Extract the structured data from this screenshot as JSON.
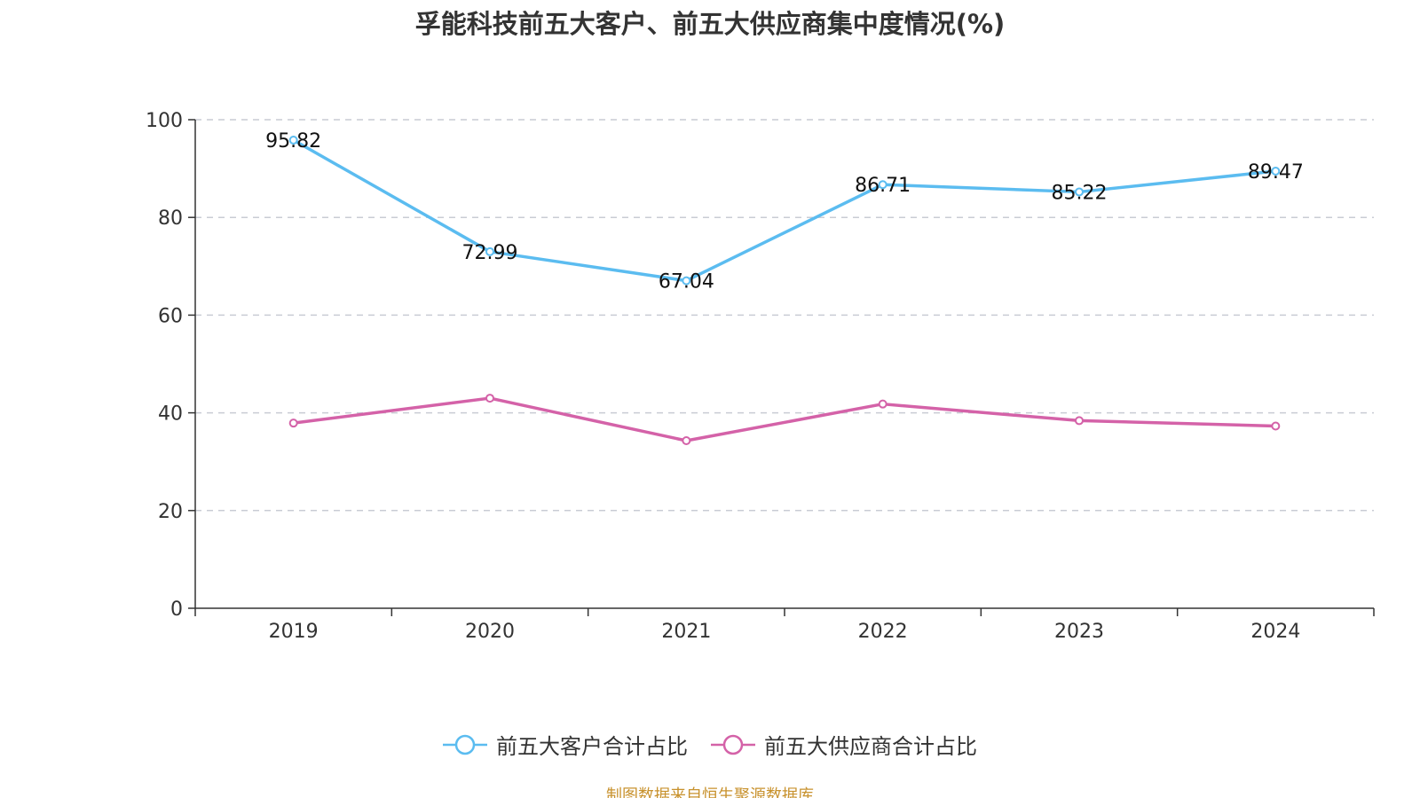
{
  "chart_data": {
    "type": "line",
    "title": "孚能科技前五大客户、前五大供应商集中度情况(%)",
    "categories": [
      "2019",
      "2020",
      "2021",
      "2022",
      "2023",
      "2024"
    ],
    "ylim": [
      0,
      100
    ],
    "yticks": [
      0,
      20,
      40,
      60,
      80,
      100
    ],
    "grid": true,
    "legend_position": "bottom",
    "series": [
      {
        "name": "前五大客户合计占比",
        "color": "#5bbcf0",
        "values": [
          95.82,
          72.99,
          67.04,
          86.71,
          85.22,
          89.47
        ],
        "labels": [
          "95.82",
          "72.99",
          "67.04",
          "86.71",
          "85.22",
          "89.47"
        ]
      },
      {
        "name": "前五大供应商合计占比",
        "color": "#d462a8",
        "values": [
          37.9,
          43.0,
          34.3,
          41.8,
          38.4,
          37.3
        ],
        "labels": []
      }
    ]
  },
  "source": "制图数据来自恒生聚源数据库"
}
